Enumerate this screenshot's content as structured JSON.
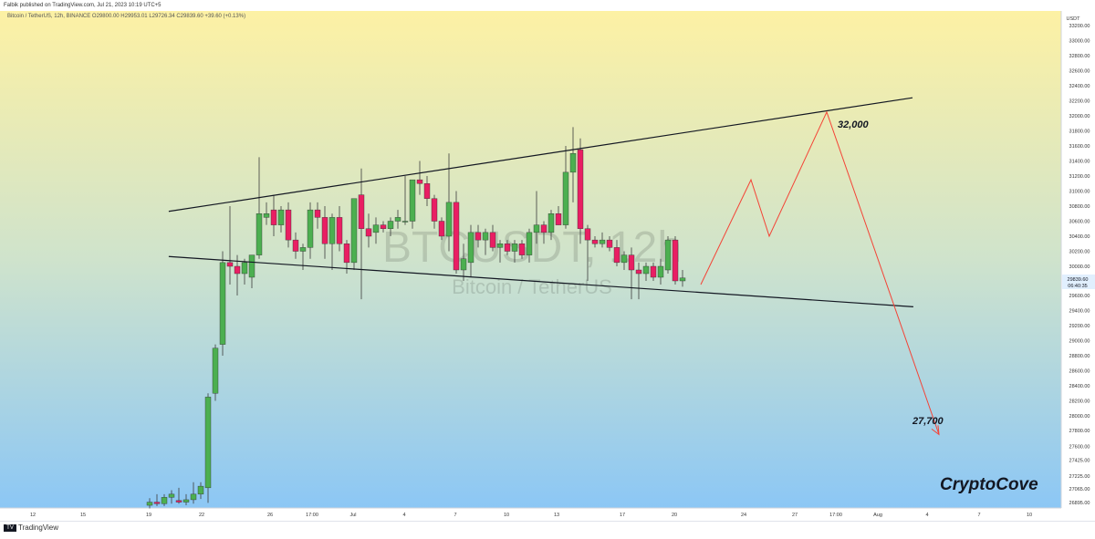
{
  "header": {
    "publisher_line": "Falbik published on TradingView.com, Jul 21, 2023 10:19 UTC+5",
    "symbol_line": "Bitcoin / TetherUS, 12h, BINANCE  O29800.00  H29953.01  L29726.34  C29839.60  +39.60 (+0.13%)"
  },
  "footer": {
    "brand": "TradingView"
  },
  "watermark": {
    "ticker": "BTCUSDT, 12h",
    "name": "Bitcoin / TetherUS"
  },
  "price_axis": {
    "currency": "USDT",
    "last_price": "29839.60",
    "countdown": "06:40:35",
    "labels": [
      "33200.00",
      "33000.00",
      "32800.00",
      "32600.00",
      "32400.00",
      "32200.00",
      "32000.00",
      "31800.00",
      "31600.00",
      "31400.00",
      "31200.00",
      "31000.00",
      "30800.00",
      "30600.00",
      "30400.00",
      "30200.00",
      "30000.00",
      "29600.00",
      "29400.00",
      "29200.00",
      "29000.00",
      "28800.00",
      "28600.00",
      "28400.00",
      "28200.00",
      "28000.00",
      "27800.00",
      "27600.00",
      "27425.00",
      "27225.00",
      "27065.00",
      "26895.00"
    ]
  },
  "annotations": {
    "target_high": "32,000",
    "target_low": "27,700",
    "signature": "CryptoCove"
  },
  "colors": {
    "up": "#4caf50",
    "down": "#e91e63",
    "projection": "#f44336",
    "bg_top": "#fdf1a4",
    "bg_bottom": "#8cc7f5"
  },
  "chart_data": {
    "type": "candlestick",
    "symbol": "BTCUSDT",
    "timeframe": "12h",
    "time_axis_labels": [
      "12",
      "15",
      "19",
      "22",
      "26",
      "17:00",
      "Jul",
      "4",
      "7",
      "10",
      "13",
      "17",
      "20",
      "24",
      "27",
      "17:00",
      "Aug",
      "4",
      "7",
      "10"
    ],
    "ylim": [
      26850,
      33350
    ],
    "candles": [
      {
        "o": 26860,
        "h": 26950,
        "l": 26820,
        "c": 26900
      },
      {
        "o": 26900,
        "h": 27000,
        "l": 26850,
        "c": 26880
      },
      {
        "o": 26880,
        "h": 27000,
        "l": 26850,
        "c": 26960
      },
      {
        "o": 26960,
        "h": 27050,
        "l": 26880,
        "c": 27000
      },
      {
        "o": 26920,
        "h": 27080,
        "l": 26880,
        "c": 26900
      },
      {
        "o": 26900,
        "h": 27000,
        "l": 26860,
        "c": 26930
      },
      {
        "o": 26930,
        "h": 27150,
        "l": 26880,
        "c": 27000
      },
      {
        "o": 27000,
        "h": 27150,
        "l": 26940,
        "c": 27100
      },
      {
        "o": 27080,
        "h": 28300,
        "l": 26890,
        "c": 28250
      },
      {
        "o": 28300,
        "h": 28950,
        "l": 28200,
        "c": 28900
      },
      {
        "o": 28950,
        "h": 30200,
        "l": 28800,
        "c": 30050
      },
      {
        "o": 30050,
        "h": 30800,
        "l": 29750,
        "c": 30000
      },
      {
        "o": 30000,
        "h": 30150,
        "l": 29600,
        "c": 29900
      },
      {
        "o": 29900,
        "h": 30100,
        "l": 29750,
        "c": 30050
      },
      {
        "o": 29850,
        "h": 30150,
        "l": 29700,
        "c": 30150
      },
      {
        "o": 30150,
        "h": 31450,
        "l": 30100,
        "c": 30700
      },
      {
        "o": 30650,
        "h": 30850,
        "l": 30550,
        "c": 30700
      },
      {
        "o": 30750,
        "h": 30950,
        "l": 30400,
        "c": 30550
      },
      {
        "o": 30550,
        "h": 30800,
        "l": 30450,
        "c": 30750
      },
      {
        "o": 30750,
        "h": 30850,
        "l": 30250,
        "c": 30350
      },
      {
        "o": 30350,
        "h": 30450,
        "l": 30100,
        "c": 30200
      },
      {
        "o": 30200,
        "h": 30300,
        "l": 29950,
        "c": 30250
      },
      {
        "o": 30250,
        "h": 30850,
        "l": 30100,
        "c": 30750
      },
      {
        "o": 30750,
        "h": 30850,
        "l": 30500,
        "c": 30650
      },
      {
        "o": 30650,
        "h": 30800,
        "l": 30100,
        "c": 30300
      },
      {
        "o": 30300,
        "h": 30700,
        "l": 29950,
        "c": 30650
      },
      {
        "o": 30650,
        "h": 30800,
        "l": 30200,
        "c": 30300
      },
      {
        "o": 30300,
        "h": 30350,
        "l": 29900,
        "c": 30050
      },
      {
        "o": 30050,
        "h": 30900,
        "l": 29950,
        "c": 30900
      },
      {
        "o": 30950,
        "h": 31300,
        "l": 29550,
        "c": 30500
      },
      {
        "o": 30500,
        "h": 30700,
        "l": 30250,
        "c": 30400
      },
      {
        "o": 30450,
        "h": 30650,
        "l": 30300,
        "c": 30550
      },
      {
        "o": 30550,
        "h": 30600,
        "l": 30450,
        "c": 30500
      },
      {
        "o": 30500,
        "h": 30650,
        "l": 30400,
        "c": 30600
      },
      {
        "o": 30600,
        "h": 30750,
        "l": 30500,
        "c": 30650
      },
      {
        "o": 30600,
        "h": 31200,
        "l": 30550,
        "c": 30600
      },
      {
        "o": 30600,
        "h": 31150,
        "l": 30500,
        "c": 31150
      },
      {
        "o": 31150,
        "h": 31400,
        "l": 30950,
        "c": 31100
      },
      {
        "o": 31100,
        "h": 31200,
        "l": 30800,
        "c": 30900
      },
      {
        "o": 30900,
        "h": 30950,
        "l": 30500,
        "c": 30600
      },
      {
        "o": 30600,
        "h": 30650,
        "l": 30350,
        "c": 30400
      },
      {
        "o": 30400,
        "h": 31500,
        "l": 30200,
        "c": 30850
      },
      {
        "o": 30850,
        "h": 31000,
        "l": 29900,
        "c": 29950
      },
      {
        "o": 29950,
        "h": 30300,
        "l": 29800,
        "c": 30100
      },
      {
        "o": 30050,
        "h": 30550,
        "l": 29850,
        "c": 30450
      },
      {
        "o": 30450,
        "h": 30550,
        "l": 30250,
        "c": 30350
      },
      {
        "o": 30350,
        "h": 30500,
        "l": 30150,
        "c": 30450
      },
      {
        "o": 30450,
        "h": 30550,
        "l": 30200,
        "c": 30250
      },
      {
        "o": 30250,
        "h": 30350,
        "l": 30050,
        "c": 30300
      },
      {
        "o": 30300,
        "h": 30350,
        "l": 30150,
        "c": 30200
      },
      {
        "o": 30200,
        "h": 30350,
        "l": 30050,
        "c": 30300
      },
      {
        "o": 30300,
        "h": 30350,
        "l": 30100,
        "c": 30150
      },
      {
        "o": 30150,
        "h": 30500,
        "l": 30050,
        "c": 30450
      },
      {
        "o": 30450,
        "h": 31000,
        "l": 30300,
        "c": 30550
      },
      {
        "o": 30550,
        "h": 30600,
        "l": 30300,
        "c": 30450
      },
      {
        "o": 30450,
        "h": 30750,
        "l": 30350,
        "c": 30700
      },
      {
        "o": 30700,
        "h": 30800,
        "l": 30550,
        "c": 30550
      },
      {
        "o": 30550,
        "h": 31600,
        "l": 30500,
        "c": 31250
      },
      {
        "o": 31250,
        "h": 31850,
        "l": 30850,
        "c": 31500
      },
      {
        "o": 31550,
        "h": 31700,
        "l": 30300,
        "c": 30500
      },
      {
        "o": 30500,
        "h": 30550,
        "l": 29800,
        "c": 30350
      },
      {
        "o": 30350,
        "h": 30400,
        "l": 30250,
        "c": 30300
      },
      {
        "o": 30300,
        "h": 30450,
        "l": 30250,
        "c": 30350
      },
      {
        "o": 30350,
        "h": 30400,
        "l": 30200,
        "c": 30250
      },
      {
        "o": 30250,
        "h": 30350,
        "l": 30000,
        "c": 30050
      },
      {
        "o": 30050,
        "h": 30200,
        "l": 29950,
        "c": 30150
      },
      {
        "o": 30150,
        "h": 30250,
        "l": 29550,
        "c": 29950
      },
      {
        "o": 29950,
        "h": 30050,
        "l": 29550,
        "c": 29900
      },
      {
        "o": 29900,
        "h": 30050,
        "l": 29800,
        "c": 30000
      },
      {
        "o": 30000,
        "h": 30050,
        "l": 29800,
        "c": 29850
      },
      {
        "o": 29850,
        "h": 30100,
        "l": 29750,
        "c": 30000
      },
      {
        "o": 29950,
        "h": 30400,
        "l": 29900,
        "c": 30350
      },
      {
        "o": 30350,
        "h": 30400,
        "l": 29750,
        "c": 29800
      },
      {
        "o": 29800,
        "h": 29950,
        "l": 29720,
        "c": 29840
      }
    ],
    "resistance_line": [
      [
        1,
        30730
      ],
      [
        40,
        32240
      ]
    ],
    "support_line": [
      [
        1,
        30130
      ],
      [
        41,
        29450
      ]
    ],
    "projection_path": [
      29750,
      31150,
      30400,
      32050,
      27750
    ],
    "levels": {
      "upper_target": 32000,
      "lower_target": 27700
    }
  }
}
